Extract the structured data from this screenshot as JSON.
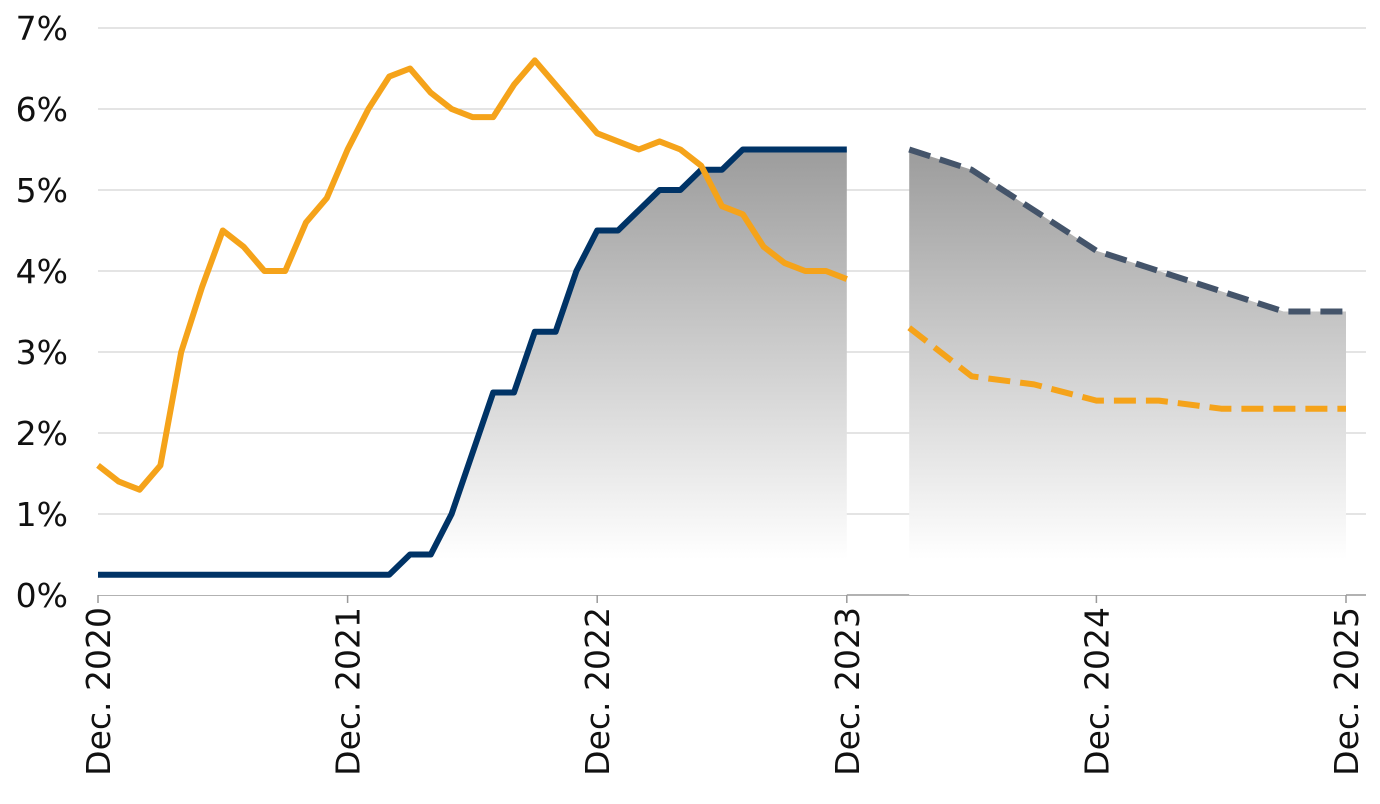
{
  "chart_data": {
    "type": "line",
    "xlim": [
      0,
      60
    ],
    "xticks": [
      {
        "value": 0,
        "label": "Dec. 2020"
      },
      {
        "value": 12,
        "label": "Dec. 2021"
      },
      {
        "value": 24,
        "label": "Dec. 2022"
      },
      {
        "value": 36,
        "label": "Dec. 2023"
      },
      {
        "value": 48,
        "label": "Dec. 2024"
      },
      {
        "value": 60,
        "label": "Dec. 2025"
      }
    ],
    "ylim": [
      0,
      7
    ],
    "yticks": [
      {
        "value": 0,
        "label": "0%"
      },
      {
        "value": 1,
        "label": "1%"
      },
      {
        "value": 2,
        "label": "2%"
      },
      {
        "value": 3,
        "label": "3%"
      },
      {
        "value": 4,
        "label": "4%"
      },
      {
        "value": 5,
        "label": "5%"
      },
      {
        "value": 6,
        "label": "6%"
      },
      {
        "value": 7,
        "label": "7%"
      }
    ],
    "grid": true,
    "series": [
      {
        "color": "#003366",
        "area": true,
        "dashed": false,
        "x": [
          0,
          1,
          2,
          3,
          4,
          5,
          6,
          7,
          8,
          9,
          10,
          11,
          12,
          13,
          14,
          15,
          16,
          17,
          18,
          19,
          20,
          21,
          22,
          23,
          24,
          25,
          26,
          27,
          28,
          29,
          30,
          31,
          32,
          33,
          34,
          35,
          36
        ],
        "values": [
          0.25,
          0.25,
          0.25,
          0.25,
          0.25,
          0.25,
          0.25,
          0.25,
          0.25,
          0.25,
          0.25,
          0.25,
          0.25,
          0.25,
          0.25,
          0.5,
          0.5,
          1.0,
          1.75,
          2.5,
          2.5,
          3.25,
          3.25,
          4.0,
          4.5,
          4.5,
          4.75,
          5.0,
          5.0,
          5.25,
          5.25,
          5.5,
          5.5,
          5.5,
          5.5,
          5.5,
          5.5
        ]
      },
      {
        "color": "#f5a31a",
        "area": false,
        "dashed": false,
        "x": [
          0,
          1,
          2,
          3,
          4,
          5,
          6,
          7,
          8,
          9,
          10,
          11,
          12,
          13,
          14,
          15,
          16,
          17,
          18,
          19,
          20,
          21,
          22,
          23,
          24,
          25,
          26,
          27,
          28,
          29,
          30,
          31,
          32,
          33,
          34,
          35,
          36
        ],
        "values": [
          1.6,
          1.4,
          1.3,
          1.6,
          3.0,
          3.8,
          4.5,
          4.3,
          4.0,
          4.0,
          4.6,
          4.9,
          5.5,
          6.0,
          6.4,
          6.5,
          6.2,
          6.0,
          5.9,
          5.9,
          6.3,
          6.6,
          6.3,
          6.0,
          5.7,
          5.6,
          5.5,
          5.6,
          5.5,
          5.3,
          4.8,
          4.7,
          4.3,
          4.1,
          4.0,
          4.0,
          3.9
        ]
      },
      {
        "color": "#44546a",
        "area": true,
        "dashed": true,
        "x": [
          39,
          42,
          45,
          48,
          51,
          54,
          57,
          60
        ],
        "values": [
          5.5,
          5.25,
          4.75,
          4.25,
          4.0,
          3.75,
          3.5,
          3.5
        ]
      },
      {
        "color": "#f5a31a",
        "area": false,
        "dashed": true,
        "x": [
          39,
          42,
          45,
          48,
          51,
          54,
          57,
          60
        ],
        "values": [
          3.3,
          2.7,
          2.6,
          2.4,
          2.4,
          2.3,
          2.3,
          2.3
        ]
      }
    ]
  }
}
